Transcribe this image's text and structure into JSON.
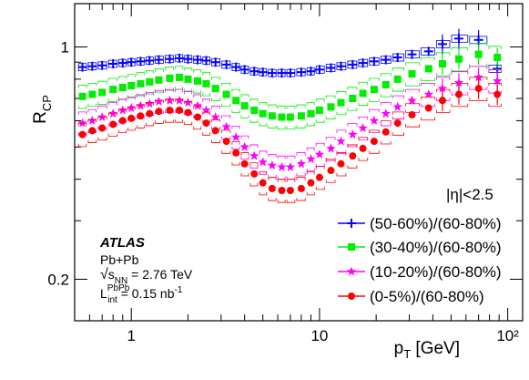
{
  "chart_data": {
    "type": "scatter",
    "xlabel": "p_T [GeV]",
    "ylabel": "R_CP",
    "x_log": true,
    "y_log": true,
    "xlim": [
      0.5,
      120
    ],
    "ylim": [
      0.15,
      1.35
    ],
    "x_ticks": [
      {
        "value": 1,
        "label": "1"
      },
      {
        "value": 10,
        "label": "10"
      },
      {
        "value": 100,
        "label": "10²"
      }
    ],
    "y_ticks": [
      {
        "value": 1,
        "label": "1"
      },
      {
        "value": 0.2,
        "label": "0.2"
      }
    ],
    "legend_title": "|η|<2.5",
    "legend_position": "bottom-right",
    "annotations": {
      "experiment": "ATLAS",
      "system": "Pb+Pb",
      "energy": "√s_NN = 2.76 TeV",
      "luminosity": "L_int^PbPb = 0.15 nb⁻¹"
    },
    "series": [
      {
        "name": "(50-60%)/(60-80%)",
        "color": "#0000ff",
        "marker": "cross",
        "points": [
          [
            0.55,
            0.87
          ],
          [
            0.62,
            0.875
          ],
          [
            0.7,
            0.88
          ],
          [
            0.8,
            0.89
          ],
          [
            0.9,
            0.895
          ],
          [
            1.0,
            0.9
          ],
          [
            1.12,
            0.905
          ],
          [
            1.25,
            0.91
          ],
          [
            1.4,
            0.915
          ],
          [
            1.6,
            0.92
          ],
          [
            1.8,
            0.925
          ],
          [
            2.0,
            0.92
          ],
          [
            2.25,
            0.915
          ],
          [
            2.5,
            0.91
          ],
          [
            2.8,
            0.9
          ],
          [
            3.2,
            0.885
          ],
          [
            3.6,
            0.87
          ],
          [
            4.0,
            0.855
          ],
          [
            4.5,
            0.845
          ],
          [
            5.0,
            0.84
          ],
          [
            5.6,
            0.835
          ],
          [
            6.3,
            0.835
          ],
          [
            7.0,
            0.835
          ],
          [
            8.0,
            0.84
          ],
          [
            9.0,
            0.845
          ],
          [
            10.0,
            0.855
          ],
          [
            11.5,
            0.865
          ],
          [
            13.0,
            0.875
          ],
          [
            15.0,
            0.885
          ],
          [
            17.0,
            0.895
          ],
          [
            19.5,
            0.905
          ],
          [
            22.5,
            0.915
          ],
          [
            26.0,
            0.93
          ],
          [
            31.0,
            0.95
          ],
          [
            38.0,
            0.97
          ],
          [
            45.0,
            1.02
          ],
          [
            55.0,
            1.06
          ],
          [
            70.0,
            1.05
          ],
          [
            88.0,
            0.86
          ]
        ]
      },
      {
        "name": "(30-40%)/(60-80%)",
        "color": "#00ee00",
        "marker": "square",
        "points": [
          [
            0.55,
            0.71
          ],
          [
            0.62,
            0.72
          ],
          [
            0.7,
            0.73
          ],
          [
            0.8,
            0.745
          ],
          [
            0.9,
            0.755
          ],
          [
            1.0,
            0.765
          ],
          [
            1.12,
            0.775
          ],
          [
            1.25,
            0.785
          ],
          [
            1.4,
            0.795
          ],
          [
            1.6,
            0.805
          ],
          [
            1.8,
            0.81
          ],
          [
            2.0,
            0.8
          ],
          [
            2.25,
            0.79
          ],
          [
            2.5,
            0.775
          ],
          [
            2.8,
            0.75
          ],
          [
            3.2,
            0.72
          ],
          [
            3.6,
            0.69
          ],
          [
            4.0,
            0.665
          ],
          [
            4.5,
            0.645
          ],
          [
            5.0,
            0.63
          ],
          [
            5.6,
            0.62
          ],
          [
            6.3,
            0.615
          ],
          [
            7.0,
            0.615
          ],
          [
            8.0,
            0.62
          ],
          [
            9.0,
            0.63
          ],
          [
            10.0,
            0.645
          ],
          [
            11.5,
            0.66
          ],
          [
            13.0,
            0.68
          ],
          [
            15.0,
            0.7
          ],
          [
            17.0,
            0.725
          ],
          [
            19.5,
            0.745
          ],
          [
            22.5,
            0.77
          ],
          [
            26.0,
            0.8
          ],
          [
            31.0,
            0.83
          ],
          [
            38.0,
            0.86
          ],
          [
            45.0,
            0.89
          ],
          [
            55.0,
            0.92
          ],
          [
            70.0,
            0.95
          ],
          [
            88.0,
            0.93
          ]
        ]
      },
      {
        "name": "(10-20%)/(60-80%)",
        "color": "#ff00ff",
        "marker": "star",
        "points": [
          [
            0.55,
            0.59
          ],
          [
            0.62,
            0.6
          ],
          [
            0.7,
            0.615
          ],
          [
            0.8,
            0.63
          ],
          [
            0.9,
            0.645
          ],
          [
            1.0,
            0.655
          ],
          [
            1.12,
            0.665
          ],
          [
            1.25,
            0.675
          ],
          [
            1.4,
            0.685
          ],
          [
            1.6,
            0.69
          ],
          [
            1.8,
            0.69
          ],
          [
            2.0,
            0.68
          ],
          [
            2.25,
            0.665
          ],
          [
            2.5,
            0.645
          ],
          [
            2.8,
            0.615
          ],
          [
            3.2,
            0.575
          ],
          [
            3.6,
            0.535
          ],
          [
            4.0,
            0.5
          ],
          [
            4.5,
            0.47
          ],
          [
            5.0,
            0.45
          ],
          [
            5.6,
            0.44
          ],
          [
            6.3,
            0.435
          ],
          [
            7.0,
            0.435
          ],
          [
            8.0,
            0.445
          ],
          [
            9.0,
            0.46
          ],
          [
            10.0,
            0.475
          ],
          [
            11.5,
            0.495
          ],
          [
            13.0,
            0.52
          ],
          [
            15.0,
            0.545
          ],
          [
            17.0,
            0.57
          ],
          [
            19.5,
            0.6
          ],
          [
            22.5,
            0.63
          ],
          [
            26.0,
            0.66
          ],
          [
            31.0,
            0.69
          ],
          [
            38.0,
            0.72
          ],
          [
            45.0,
            0.75
          ],
          [
            55.0,
            0.78
          ],
          [
            70.0,
            0.81
          ],
          [
            88.0,
            0.79
          ]
        ]
      },
      {
        "name": "(0-5%)/(60-80%)",
        "color": "#ff0000",
        "marker": "circle",
        "points": [
          [
            0.55,
            0.545
          ],
          [
            0.62,
            0.56
          ],
          [
            0.7,
            0.57
          ],
          [
            0.8,
            0.585
          ],
          [
            0.9,
            0.6
          ],
          [
            1.0,
            0.61
          ],
          [
            1.12,
            0.62
          ],
          [
            1.25,
            0.63
          ],
          [
            1.4,
            0.64
          ],
          [
            1.6,
            0.645
          ],
          [
            1.8,
            0.645
          ],
          [
            2.0,
            0.635
          ],
          [
            2.25,
            0.615
          ],
          [
            2.5,
            0.59
          ],
          [
            2.8,
            0.56
          ],
          [
            3.2,
            0.52
          ],
          [
            3.6,
            0.48
          ],
          [
            4.0,
            0.445
          ],
          [
            4.5,
            0.415
          ],
          [
            5.0,
            0.39
          ],
          [
            5.6,
            0.375
          ],
          [
            6.3,
            0.37
          ],
          [
            7.0,
            0.37
          ],
          [
            8.0,
            0.375
          ],
          [
            9.0,
            0.39
          ],
          [
            10.0,
            0.405
          ],
          [
            11.5,
            0.425
          ],
          [
            13.0,
            0.445
          ],
          [
            15.0,
            0.47
          ],
          [
            17.0,
            0.495
          ],
          [
            19.5,
            0.52
          ],
          [
            22.5,
            0.555
          ],
          [
            26.0,
            0.59
          ],
          [
            31.0,
            0.625
          ],
          [
            38.0,
            0.655
          ],
          [
            45.0,
            0.69
          ],
          [
            55.0,
            0.72
          ],
          [
            70.0,
            0.75
          ],
          [
            88.0,
            0.72
          ]
        ]
      }
    ]
  }
}
